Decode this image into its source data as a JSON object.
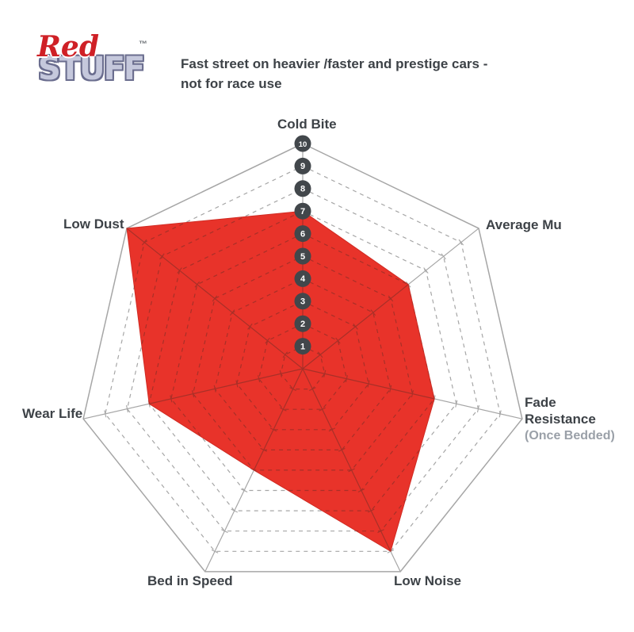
{
  "logo": {
    "red": "Red",
    "stuff": "STUFF",
    "tm": "™"
  },
  "subtitle": {
    "line1": "Fast street on heavier /faster and prestige cars -",
    "line2": "not for race use"
  },
  "chart_data": {
    "type": "radar",
    "categories": [
      "Cold Bite",
      "Average Mu",
      "Fade Resistance (Once Bedded)",
      "Low Noise",
      "Bed in Speed",
      "Wear Life",
      "Low Dust"
    ],
    "values": [
      7,
      6,
      6,
      9,
      5,
      7,
      10
    ],
    "scale_min": 1,
    "scale_max": 10,
    "scale_tick_labels": [
      "1",
      "2",
      "3",
      "4",
      "5",
      "6",
      "7",
      "8",
      "9",
      "10"
    ],
    "grid": "dashed concentric heptagons at 1-9, solid outline at 10, solid spokes with unit tick crosses",
    "legend": "none",
    "colors": {
      "fill": "#e8332a",
      "fill_edge": "#d02b23",
      "grid_gray": "#a6a6a6",
      "grid_solid_gray": "#979797",
      "grid_over_fill": "#a83028",
      "scale_circle": "#42474b",
      "scale_text": "#ffffff"
    }
  },
  "axis_labels": {
    "cold_bite": "Cold Bite",
    "average_mu": "Average Mu",
    "fade_line1": "Fade",
    "fade_line2": "Resistance",
    "fade_line3": "(Once Bedded)",
    "low_noise": "Low Noise",
    "bed_in_speed": "Bed in Speed",
    "wear_life": "Wear Life",
    "low_dust": "Low Dust"
  }
}
